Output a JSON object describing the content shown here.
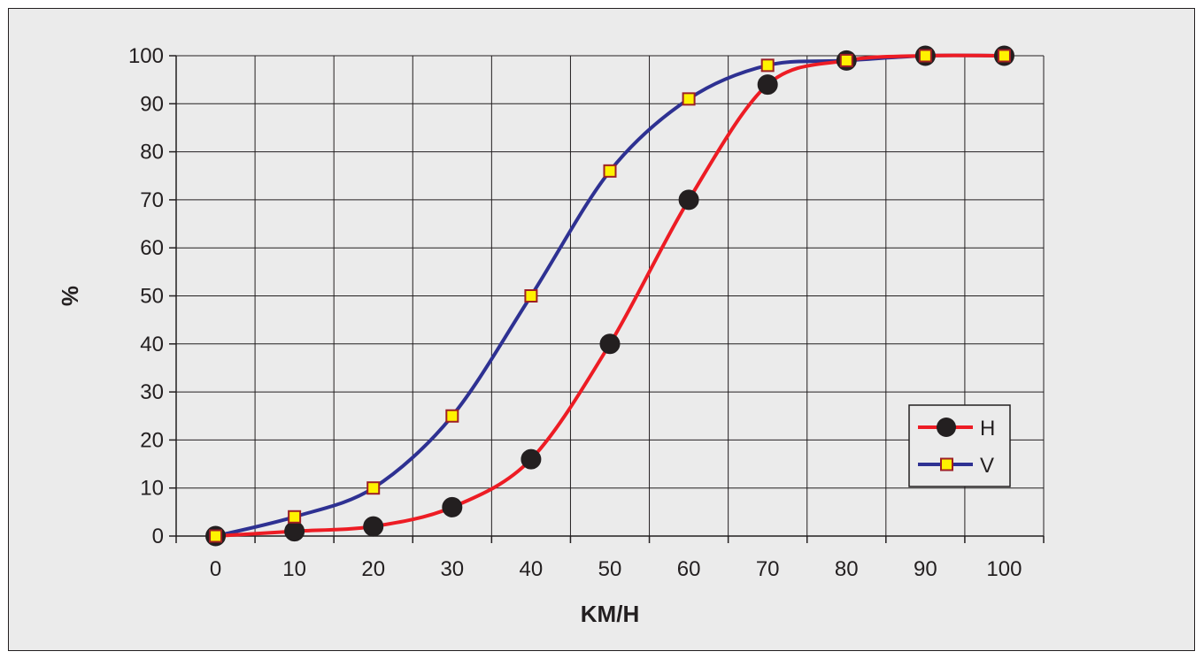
{
  "chart_data": {
    "type": "line",
    "title": "",
    "xlabel": "KM/H",
    "ylabel": "%",
    "x": [
      0,
      10,
      20,
      30,
      40,
      50,
      60,
      70,
      80,
      90,
      100
    ],
    "xlim": [
      -5,
      105
    ],
    "ylim": [
      0,
      100
    ],
    "x_ticks": [
      "0",
      "10",
      "20",
      "30",
      "40",
      "50",
      "60",
      "70",
      "80",
      "90",
      "100"
    ],
    "y_ticks": [
      "0",
      "10",
      "20",
      "30",
      "40",
      "50",
      "60",
      "70",
      "80",
      "90",
      "100"
    ],
    "grid": true,
    "legend_position": "bottom-right",
    "series": [
      {
        "name": "H",
        "values": [
          0,
          1,
          2,
          6,
          16,
          40,
          70,
          94,
          99,
          100,
          100
        ],
        "color": "#ed1c24",
        "marker": "circle",
        "marker_color": "#231f20"
      },
      {
        "name": "V",
        "values": [
          0,
          4,
          10,
          25,
          50,
          76,
          91,
          98,
          99,
          100,
          100
        ],
        "color": "#2e3192",
        "marker": "square",
        "marker_color": "#fff200",
        "marker_edge": "#9e1f24"
      }
    ]
  }
}
